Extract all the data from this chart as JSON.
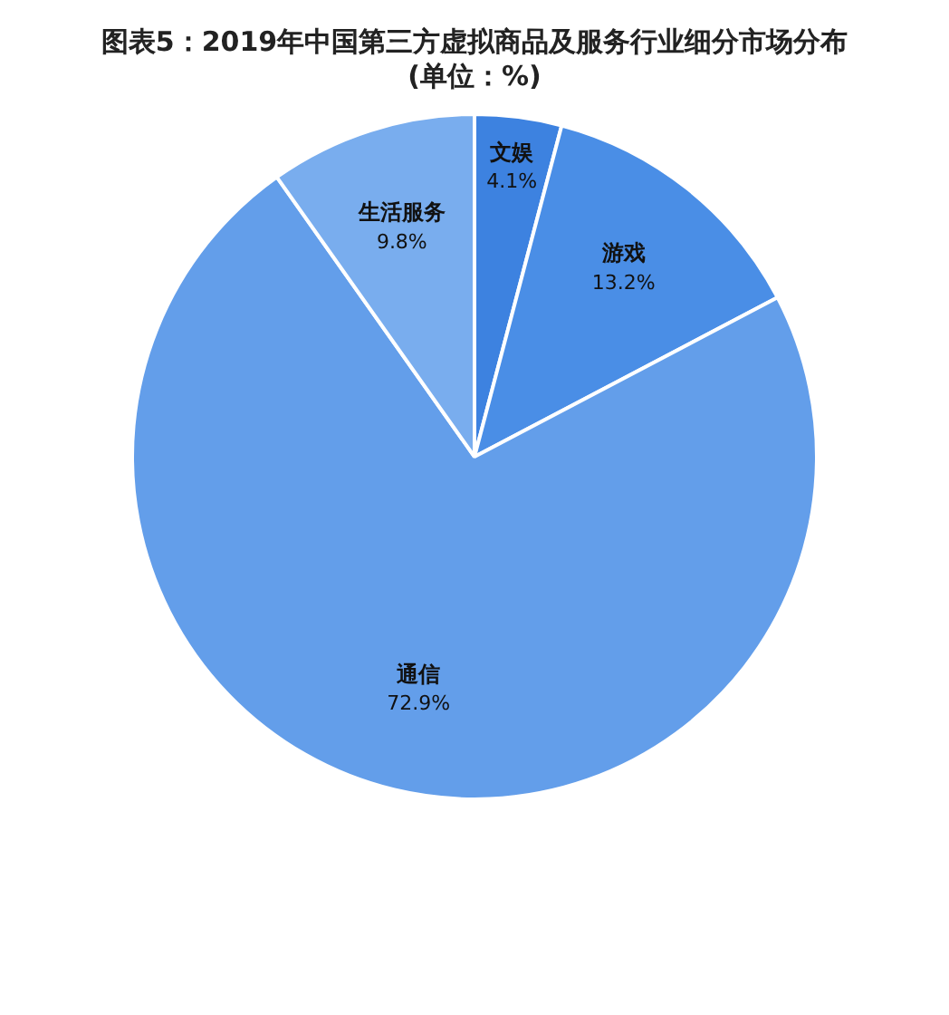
{
  "chart_data": {
    "type": "pie",
    "title": "图表5：2019年中国第三方虚拟商品及服务行业细分市场分布(单位：%)",
    "categories": [
      "文娱",
      "游戏",
      "通信",
      "生活服务"
    ],
    "values": [
      4.1,
      13.2,
      72.9,
      9.8
    ],
    "colors": [
      "#3d82e0",
      "#4a8ee6",
      "#639eea",
      "#79adee"
    ],
    "value_labels": [
      "4.1%",
      "13.2%",
      "72.9%",
      "9.8%"
    ],
    "legend": false
  }
}
